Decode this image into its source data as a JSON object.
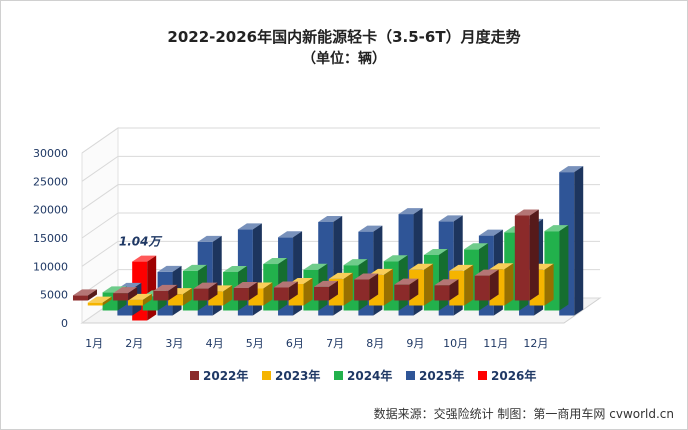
{
  "chart_data": {
    "type": "bar",
    "title": "2022-2026年国内新能源轻卡（3.5-6T）月度走势",
    "subtitle": "（单位：辆）",
    "categories": [
      "1月",
      "2月",
      "3月",
      "4月",
      "5月",
      "6月",
      "7月",
      "8月",
      "9月",
      "10月",
      "11月",
      "12月"
    ],
    "y_ticks": [
      "0",
      "5000",
      "10000",
      "15000",
      "20000",
      "25000",
      "30000"
    ],
    "ylim": [
      0,
      30000
    ],
    "series": [
      {
        "name": "2022年",
        "color": "#8b2a2a",
        "values": [
          900,
          1300,
          1700,
          2100,
          2200,
          2300,
          2400,
          3700,
          2800,
          2700,
          4400,
          15000
        ]
      },
      {
        "name": "2023年",
        "color": "#f5b400",
        "values": [
          500,
          1000,
          2000,
          2500,
          3000,
          3800,
          4700,
          5400,
          6300,
          6100,
          6400,
          6300
        ]
      },
      {
        "name": "2024年",
        "color": "#22b14c",
        "values": [
          3200,
          2500,
          7000,
          6800,
          8200,
          7200,
          8000,
          8700,
          9800,
          10800,
          13800,
          14000
        ]
      },
      {
        "name": "2025年",
        "color": "#2f5597",
        "values": [
          4700,
          7700,
          13000,
          15200,
          13800,
          16500,
          14800,
          17900,
          16600,
          14100,
          16000,
          25300
        ]
      },
      {
        "name": "2026年",
        "color": "#ff0000",
        "values": [
          10400,
          null,
          null,
          null,
          null,
          null,
          null,
          null,
          null,
          null,
          null,
          null
        ]
      }
    ],
    "annotations": [
      {
        "text": "1.04万",
        "series": "2026年",
        "category": "1月"
      }
    ],
    "legend_position": "bottom"
  },
  "source": "数据来源：交强险统计  制图：第一商用车网 cvworld.cn"
}
